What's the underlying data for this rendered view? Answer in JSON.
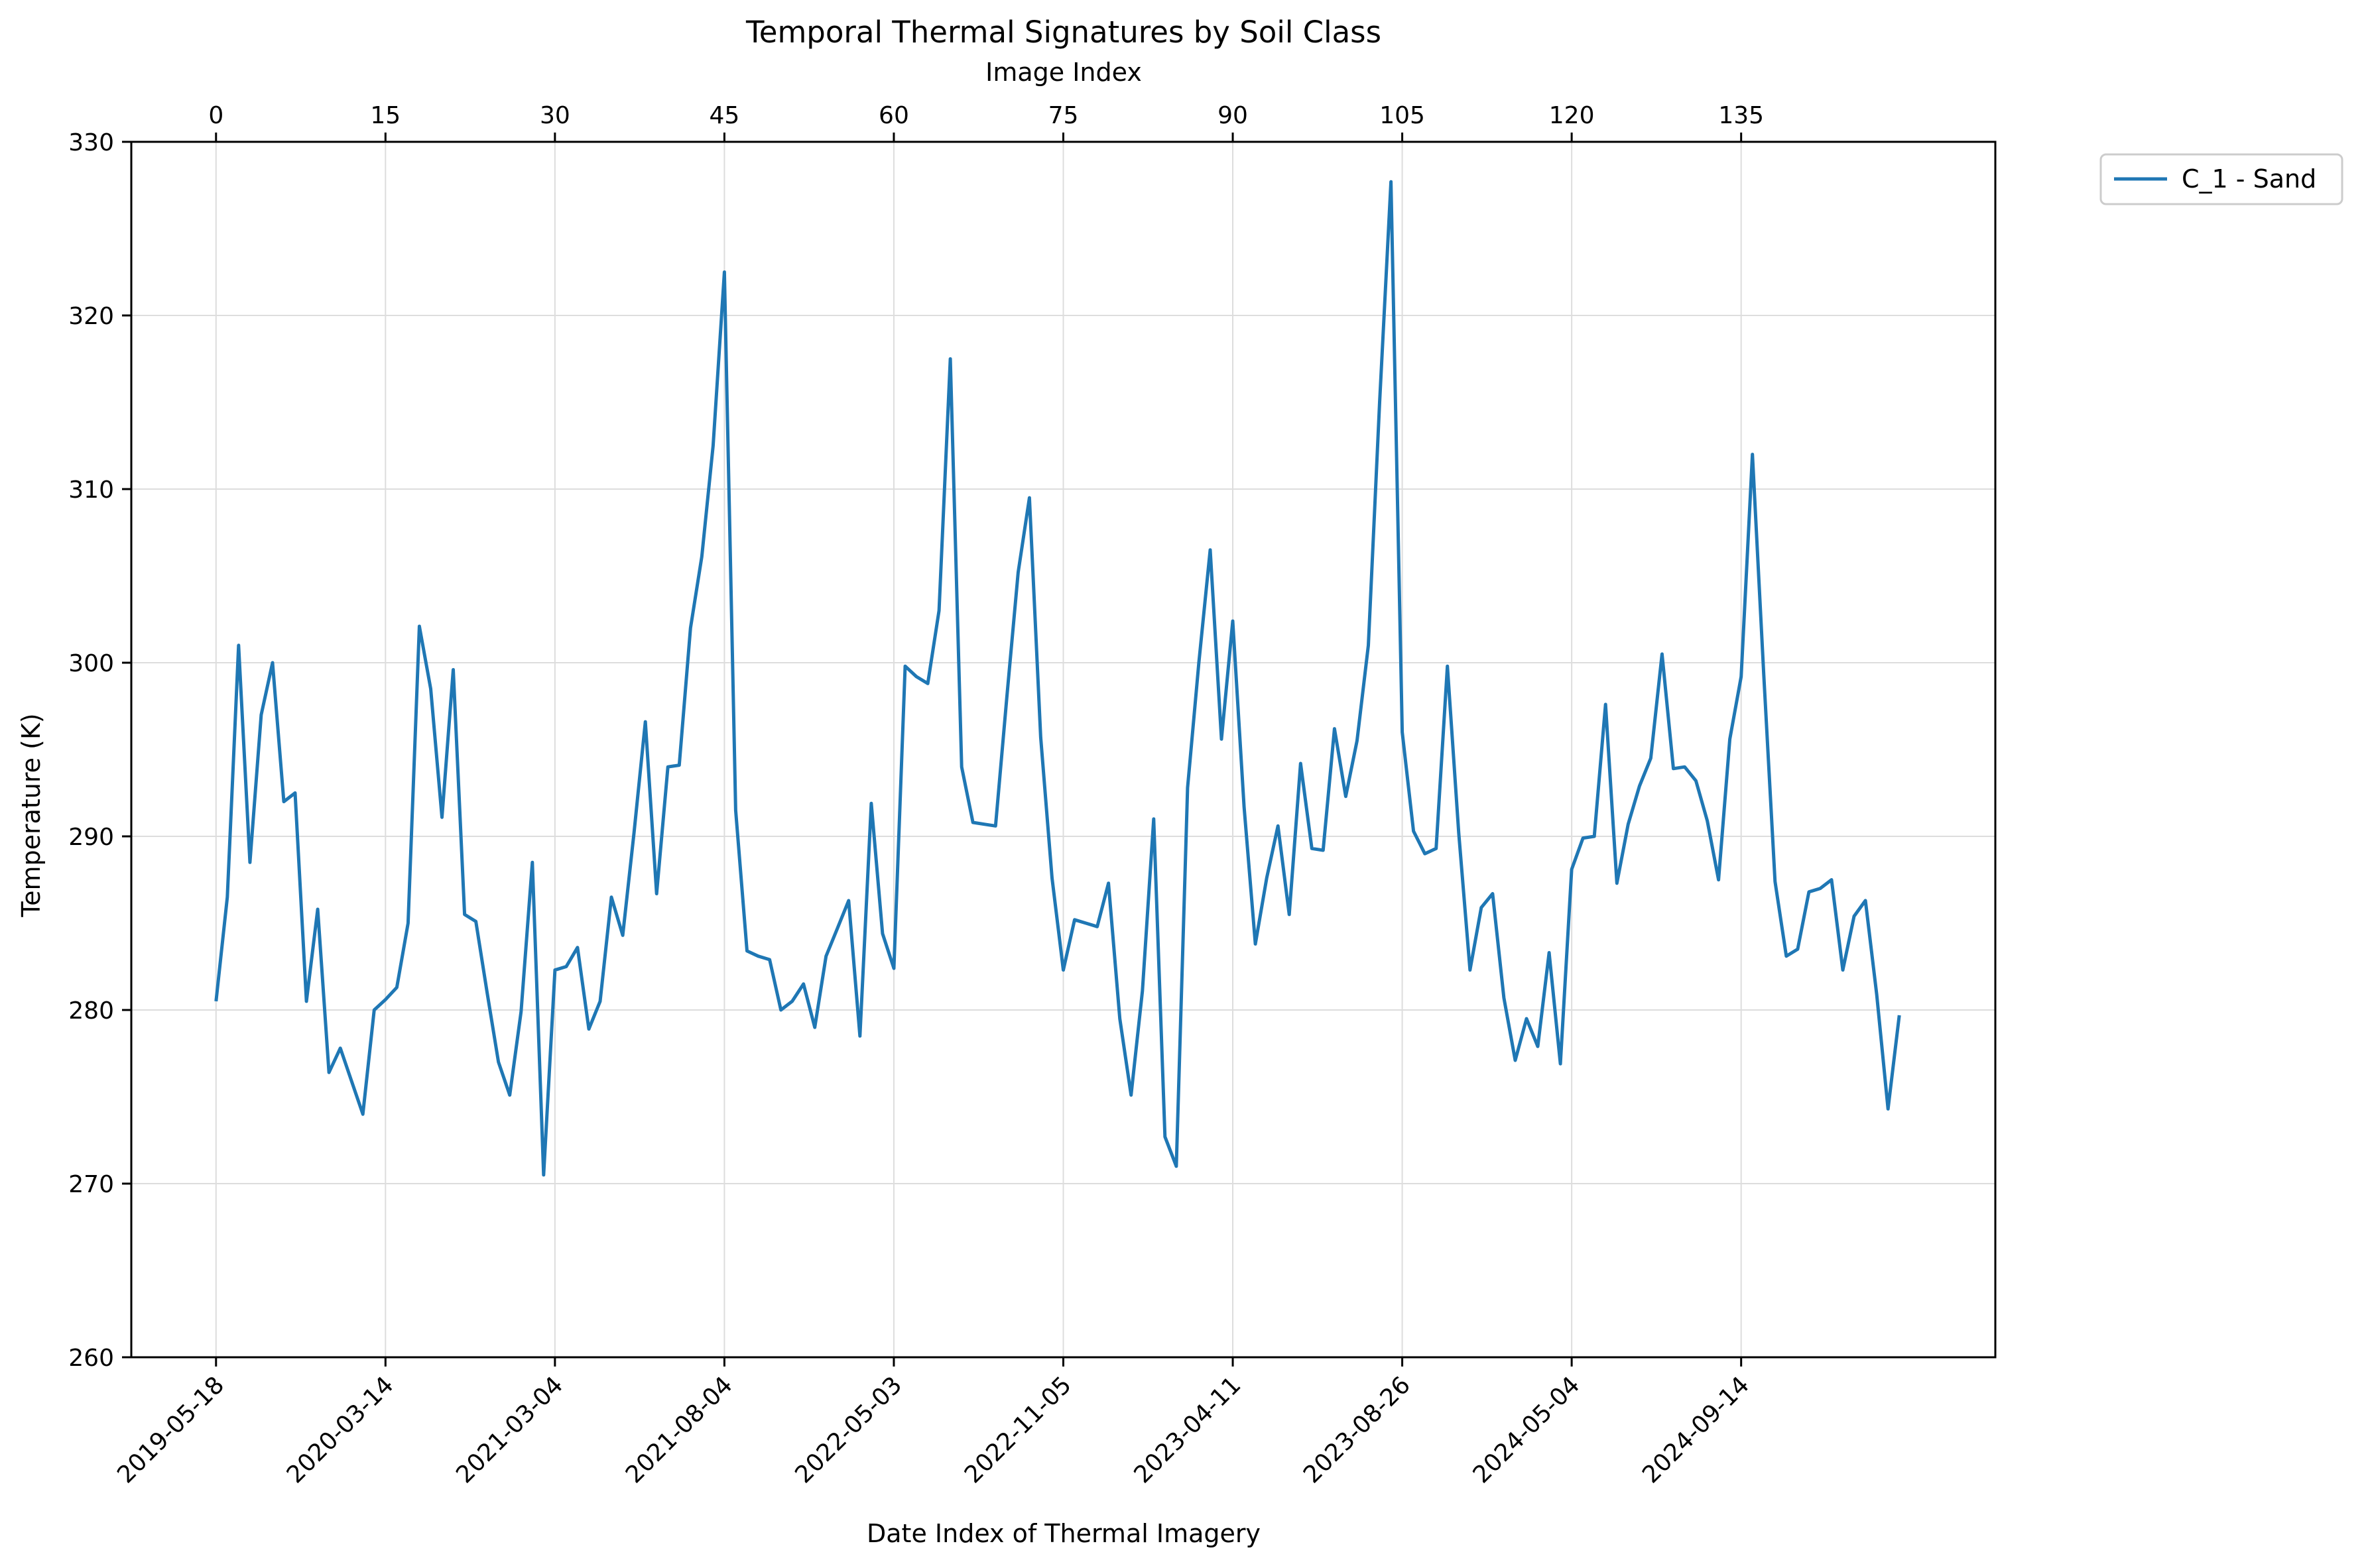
{
  "chart_data": {
    "type": "line",
    "title": "Temporal Thermal Signatures by Soil Class",
    "xlabel": "Date Index of Thermal Imagery",
    "ylabel": "Temperature (K)",
    "top_xlabel": "Image Index",
    "ylim": [
      260,
      330
    ],
    "xlim": [
      -7.5,
      157.5
    ],
    "y_ticks": [
      260,
      270,
      280,
      290,
      300,
      310,
      320,
      330
    ],
    "x_ticks": [
      0,
      15,
      30,
      45,
      60,
      75,
      90,
      105,
      120,
      135
    ],
    "x_tick_labels": [
      "2019-05-18",
      "2020-03-14",
      "2021-03-04",
      "2021-08-04",
      "2022-05-03",
      "2022-11-05",
      "2023-04-11",
      "2023-08-26",
      "2024-05-04",
      "2024-09-14"
    ],
    "top_tick_labels": [
      "0",
      "15",
      "30",
      "45",
      "60",
      "75",
      "90",
      "105",
      "120",
      "135"
    ],
    "grid": true,
    "legend_position": "outside-top-right",
    "series": [
      {
        "name": "C_1 - Sand",
        "color": "#1f77b4",
        "values": [
          280.5,
          286.5,
          301.0,
          288.5,
          297.0,
          300.0,
          292.0,
          292.5,
          280.5,
          285.8,
          276.4,
          277.8,
          275.9,
          274.0,
          280.0,
          280.6,
          281.3,
          285.0,
          302.1,
          298.5,
          291.1,
          299.6,
          285.5,
          285.1,
          281.0,
          277.0,
          275.1,
          279.9,
          288.5,
          270.5,
          282.3,
          282.5,
          283.6,
          278.9,
          280.5,
          286.5,
          284.3,
          290.2,
          296.6,
          286.7,
          294.0,
          294.1,
          302.0,
          306.1,
          312.5,
          322.5,
          291.5,
          283.4,
          283.1,
          282.9,
          280.0,
          280.5,
          281.5,
          279.0,
          283.1,
          284.7,
          286.3,
          278.5,
          291.9,
          284.4,
          282.4,
          299.8,
          299.2,
          298.8,
          303.0,
          317.5,
          294.0,
          290.8,
          290.7,
          290.6,
          298.0,
          305.2,
          309.5,
          295.7,
          287.6,
          282.3,
          285.2,
          285.0,
          284.8,
          287.3,
          279.5,
          275.1,
          281.1,
          291.0,
          272.7,
          271.0,
          292.8,
          300.0,
          306.5,
          295.6,
          302.4,
          291.7,
          283.8,
          287.6,
          290.6,
          285.5,
          294.2,
          289.3,
          289.2,
          296.2,
          292.3,
          295.5,
          301.0,
          315.0,
          327.7,
          296.0,
          290.3,
          289.0,
          289.3,
          299.8,
          290.2,
          282.3,
          285.9,
          286.7,
          280.7,
          277.1,
          279.5,
          277.9,
          283.3,
          276.9,
          288.1,
          289.9,
          290.0,
          297.6,
          287.3,
          290.7,
          292.9,
          294.5,
          300.5,
          293.9,
          294.0,
          293.2,
          290.9,
          287.5,
          295.6,
          299.2,
          312.0,
          299.3,
          287.4,
          283.1,
          283.5,
          286.8,
          287.0,
          287.5,
          282.3,
          285.4,
          286.3,
          280.9,
          274.3,
          279.7
        ]
      }
    ]
  }
}
